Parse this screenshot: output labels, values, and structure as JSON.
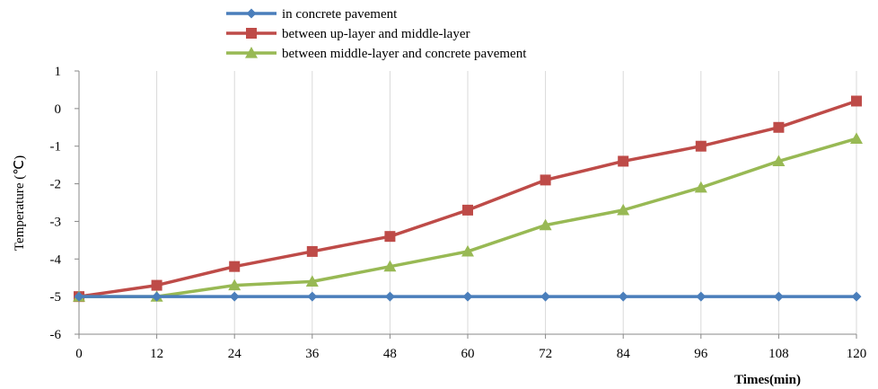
{
  "chart_data": {
    "type": "line",
    "xlabel": "Times(min)",
    "ylabel": "Temperature (℃)",
    "x": [
      0,
      12,
      24,
      36,
      48,
      60,
      72,
      84,
      96,
      108,
      120
    ],
    "xlim": [
      0,
      120
    ],
    "ylim": [
      -6,
      1
    ],
    "yticks": [
      1,
      0,
      -1,
      -2,
      -3,
      -4,
      -5,
      -6
    ],
    "grid": "vertical",
    "legend": "top",
    "series": [
      {
        "name": "in concrete pavement",
        "color": "#4a7ebb",
        "marker": "diamond",
        "values": [
          -5,
          -5,
          -5,
          -5,
          -5,
          -5,
          -5,
          -5,
          -5,
          -5,
          -5
        ]
      },
      {
        "name": "between up-layer and middle-layer",
        "color": "#be4b48",
        "marker": "square",
        "values": [
          -5,
          -4.7,
          -4.2,
          -3.8,
          -3.4,
          -2.7,
          -1.9,
          -1.4,
          -1.0,
          -0.5,
          0.2
        ]
      },
      {
        "name": "between middle-layer and concrete pavement",
        "color": "#98b954",
        "marker": "triangle",
        "values": [
          -5,
          -5,
          -4.7,
          -4.6,
          -4.2,
          -3.8,
          -3.1,
          -2.7,
          -2.1,
          -1.4,
          -0.8
        ]
      }
    ]
  }
}
